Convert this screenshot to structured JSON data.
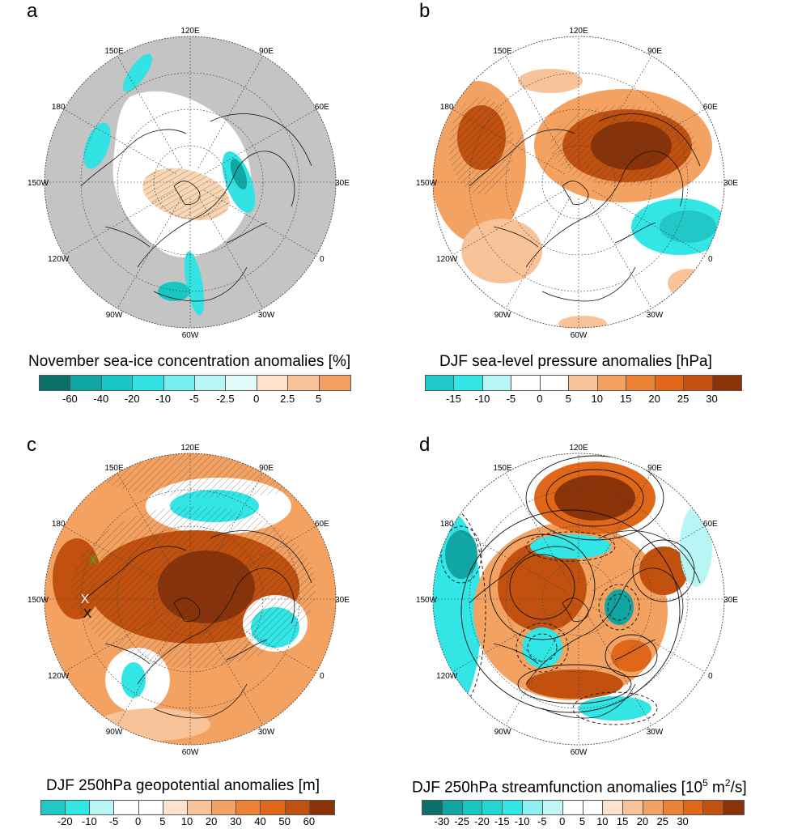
{
  "panels": [
    {
      "letter": "a",
      "caption": "November sea-ice concentration anomalies [%]",
      "lon_labels": [
        "120E",
        "90E",
        "60E",
        "30E",
        "0",
        "30W",
        "60W",
        "90W",
        "120W",
        "150W",
        "180",
        "150E"
      ],
      "colorbar": {
        "colors": [
          "#0b6f6a",
          "#10a6a3",
          "#18c7c4",
          "#33e3e3",
          "#76eeee",
          "#b8f5f5",
          "#e3fbfb",
          "#fde2cc",
          "#f9c39a",
          "#f2a061"
        ],
        "labels": [
          "-60",
          "-40",
          "-20",
          "-10",
          "-5",
          "-2.5",
          "0",
          "2.5",
          "5"
        ]
      }
    },
    {
      "letter": "b",
      "caption": "DJF sea-level pressure anomalies [hPa]",
      "lon_labels": [
        "120E",
        "90E",
        "60E",
        "30E",
        "0",
        "30W",
        "60W",
        "90W",
        "120W",
        "150W",
        "180",
        "150E"
      ],
      "colorbar": {
        "colors": [
          "#22c8c8",
          "#33e6e6",
          "#b8f5f5",
          "#ffffff",
          "#ffffff",
          "#f9c39a",
          "#f4a262",
          "#ec8233",
          "#e0661a",
          "#c2510f",
          "#8a3308"
        ],
        "labels": [
          "-15",
          "-10",
          "-5",
          "0",
          "5",
          "10",
          "15",
          "20",
          "25",
          "30"
        ]
      }
    },
    {
      "letter": "c",
      "caption": "DJF 250hPa geopotential anomalies [m]",
      "lon_labels": [
        "120E",
        "90E",
        "60E",
        "30E",
        "0",
        "30W",
        "60W",
        "90W",
        "120W",
        "150W",
        "180",
        "150E"
      ],
      "markers": [
        "X",
        "X",
        "X"
      ],
      "colorbar": {
        "colors": [
          "#22c8c8",
          "#33e6e6",
          "#b8f5f5",
          "#ffffff",
          "#ffffff",
          "#fde2cc",
          "#f9c39a",
          "#f4a262",
          "#ec8233",
          "#e0661a",
          "#c2510f",
          "#8a3308"
        ],
        "labels": [
          "-20",
          "-10",
          "-5",
          "0",
          "5",
          "10",
          "20",
          "30",
          "40",
          "50",
          "60"
        ]
      }
    },
    {
      "letter": "d",
      "caption_pre": "DJF 250hPa streamfunction anomalies [10",
      "caption_sup": "5",
      "caption_mid": " m",
      "caption_sup2": "2",
      "caption_post": "/s]",
      "lon_labels": [
        "120E",
        "90E",
        "60E",
        "30E",
        "0",
        "30W",
        "60W",
        "90W",
        "120W",
        "150W",
        "180",
        "150E"
      ],
      "colorbar": {
        "colors": [
          "#0b6f6a",
          "#10a6a3",
          "#18c7c4",
          "#22d6d6",
          "#33e6e6",
          "#8ef0f0",
          "#c2f6f6",
          "#ffffff",
          "#ffffff",
          "#fde2cc",
          "#f9c39a",
          "#f4a262",
          "#ec8233",
          "#e0661a",
          "#c2510f",
          "#8a3308"
        ],
        "labels": [
          "-30",
          "-25",
          "-20",
          "-15",
          "-10",
          "-5",
          "0",
          "5",
          "10",
          "15",
          "20",
          "25",
          "30"
        ]
      }
    }
  ]
}
